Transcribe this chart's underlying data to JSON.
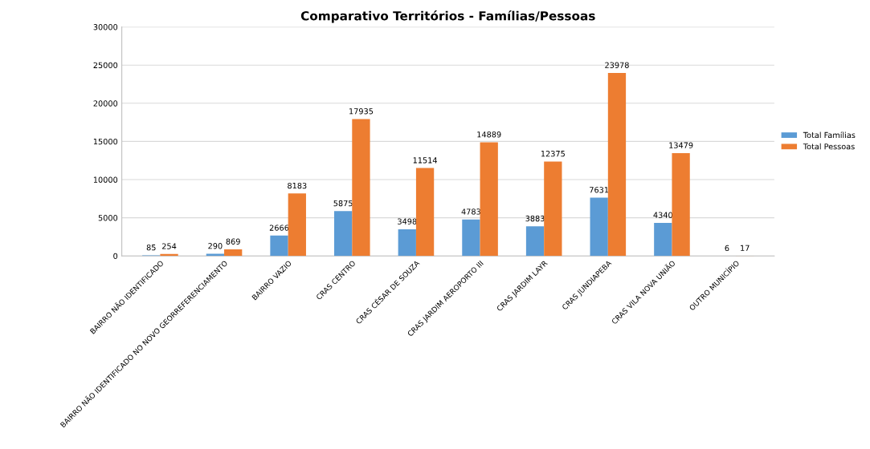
{
  "chart_data": {
    "type": "bar",
    "title": "Comparativo Territórios - Famílias/Pessoas",
    "categories": [
      "BAIRRO NÃO IDENTIFICADO",
      "BAIRRO NÃO IDENTIFICADO NO NOVO GEORREFERENCIAMENTO",
      "BAIRRO VAZIO",
      "CRAS CENTRO",
      "CRAS CÉSAR DE SOUZA",
      "CRAS JARDIM AEROPORTO III",
      "CRAS JARDIM LAYR",
      "CRAS JUNDIAPEBA",
      "CRAS VILA NOVA UNIÃO",
      "OUTRO MUNICÍPIO"
    ],
    "series": [
      {
        "name": "Total Famílias",
        "color": "#5b9bd5",
        "values": [
          85,
          290,
          2666,
          5875,
          3498,
          4783,
          3883,
          7631,
          4340,
          6
        ]
      },
      {
        "name": "Total Pessoas",
        "color": "#ed7d31",
        "values": [
          254,
          869,
          8183,
          17935,
          11514,
          14889,
          12375,
          23978,
          13479,
          17
        ]
      }
    ],
    "ylim": [
      0,
      30000
    ],
    "yticks": [
      0,
      5000,
      10000,
      15000,
      20000,
      25000,
      30000
    ],
    "grid": "y",
    "legend": "right",
    "data_labels": true
  }
}
